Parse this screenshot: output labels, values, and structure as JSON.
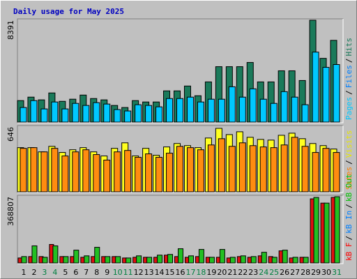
{
  "title": "Daily usage for May 2025",
  "x_axis": {
    "categories": [
      "1",
      "2",
      "3",
      "4",
      "5",
      "6",
      "7",
      "8",
      "9",
      "10",
      "11",
      "12",
      "13",
      "14",
      "15",
      "16",
      "17",
      "18",
      "19",
      "20",
      "21",
      "22",
      "23",
      "24",
      "25",
      "26",
      "27",
      "28",
      "29",
      "30",
      "31"
    ],
    "colors": [
      "#000000",
      "#000000",
      "#008040",
      "#008040",
      "#000000",
      "#000000",
      "#000000",
      "#000000",
      "#000000",
      "#008040",
      "#008040",
      "#000000",
      "#000000",
      "#000000",
      "#000000",
      "#000000",
      "#008040",
      "#008040",
      "#000000",
      "#000000",
      "#000000",
      "#000000",
      "#000000",
      "#008040",
      "#008040",
      "#000000",
      "#000000",
      "#000000",
      "#000000",
      "#000000",
      "#008040"
    ]
  },
  "legend_separator": "/",
  "chart_data": [
    {
      "type": "bar",
      "ylim": [
        0,
        8391
      ],
      "yticks": [
        8391
      ],
      "legend": [
        {
          "label": "Pages",
          "color": "#00c8ff"
        },
        {
          "label": "Files",
          "color": "#0080ff"
        },
        {
          "label": "Hits",
          "color": "#1a7a5a"
        }
      ],
      "series": [
        {
          "color": "#1a7a5a",
          "values": [
            1770,
            2055,
            1830,
            2400,
            1710,
            1885,
            2225,
            1940,
            1830,
            1370,
            1200,
            1770,
            1655,
            1655,
            2570,
            2570,
            2970,
            2170,
            3310,
            4565,
            4565,
            4565,
            4910,
            3310,
            3310,
            4225,
            4225,
            3425,
            8391,
            5250,
            6735
          ]
        },
        {
          "color": "#00c8ff",
          "values": [
            1200,
            1770,
            1085,
            1655,
            1085,
            1540,
            1370,
            1600,
            1485,
            1030,
            915,
            1430,
            1370,
            1255,
            1940,
            1940,
            2055,
            1655,
            1885,
            1885,
            2910,
            2055,
            2740,
            1885,
            1540,
            2510,
            2055,
            1430,
            5765,
            4510,
            4740
          ]
        }
      ]
    },
    {
      "type": "bar",
      "ylim": [
        0,
        646
      ],
      "yticks": [
        646
      ],
      "legend": [
        {
          "label": "Sites",
          "color": "#ff8000"
        },
        {
          "label": "Visits",
          "color": "#e8e800"
        }
      ],
      "series": [
        {
          "color": "#ffff20",
          "values": [
            440,
            440,
            398,
            453,
            392,
            419,
            440,
            398,
            357,
            433,
            488,
            357,
            433,
            364,
            447,
            481,
            460,
            440,
            536,
            632,
            570,
            598,
            543,
            522,
            515,
            563,
            584,
            529,
            481,
            460,
            426
          ]
        },
        {
          "color": "#ff8c10",
          "values": [
            433,
            440,
            398,
            433,
            357,
            398,
            419,
            371,
            316,
            398,
            412,
            344,
            378,
            344,
            385,
            453,
            440,
            419,
            467,
            529,
            453,
            488,
            460,
            447,
            440,
            467,
            543,
            453,
            392,
            433,
            392
          ]
        }
      ]
    },
    {
      "type": "bar",
      "ylim": [
        0,
        368807
      ],
      "yticks": [
        368807
      ],
      "legend": [
        {
          "label": "kB F",
          "color": "#ff0000"
        },
        {
          "label": "kB In",
          "color": "#0080ff"
        },
        {
          "label": "kB Out",
          "color": "#00c000"
        }
      ],
      "series": [
        {
          "color": "#e01010",
          "values": [
            27760,
            35690,
            35690,
            103110,
            35690,
            35690,
            31730,
            35690,
            35690,
            35690,
            27760,
            31730,
            31730,
            31730,
            43630,
            35690,
            31730,
            35690,
            31730,
            31730,
            27760,
            35690,
            31730,
            39660,
            35690,
            67420,
            27760,
            31730,
            356940,
            333140,
            364870
          ]
        },
        {
          "color": "#22c022",
          "values": [
            35690,
            95180,
            31730,
            95180,
            35690,
            71390,
            39660,
            87250,
            35690,
            35690,
            27760,
            39660,
            31730,
            43630,
            47590,
            79320,
            39660,
            75350,
            31730,
            75350,
            31730,
            39660,
            35690,
            59490,
            31730,
            71390,
            31730,
            31730,
            364870,
            333140,
            368807
          ]
        }
      ]
    }
  ]
}
